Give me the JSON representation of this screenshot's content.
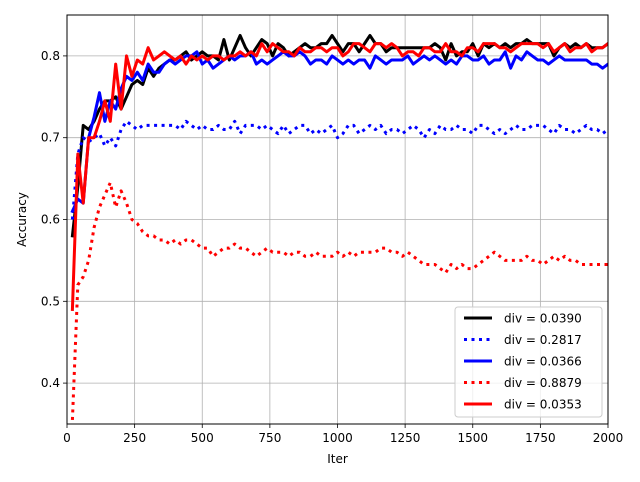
{
  "chart_data": {
    "type": "line",
    "title": "",
    "xlabel": "Iter",
    "ylabel": "Accuracy",
    "xlim": [
      0,
      2000
    ],
    "ylim": [
      0.35,
      0.85
    ],
    "xticks": [
      0,
      250,
      500,
      750,
      1000,
      1250,
      1500,
      1750,
      2000
    ],
    "yticks": [
      0.4,
      0.5,
      0.6,
      0.7,
      0.8
    ],
    "xtick_labels": [
      "0",
      "250",
      "500",
      "750",
      "1000",
      "1250",
      "1500",
      "1750",
      "2000"
    ],
    "ytick_labels": [
      "0.4",
      "0.5",
      "0.6",
      "0.7",
      "0.8"
    ],
    "grid": true,
    "legend_position": "lower-right",
    "x": [
      20,
      40,
      60,
      80,
      100,
      120,
      140,
      160,
      180,
      200,
      220,
      240,
      260,
      280,
      300,
      320,
      340,
      360,
      380,
      400,
      420,
      440,
      460,
      480,
      500,
      520,
      540,
      560,
      580,
      600,
      620,
      640,
      660,
      680,
      700,
      720,
      740,
      760,
      780,
      800,
      820,
      840,
      860,
      880,
      900,
      920,
      940,
      960,
      980,
      1000,
      1020,
      1040,
      1060,
      1080,
      1100,
      1120,
      1140,
      1160,
      1180,
      1200,
      1220,
      1240,
      1260,
      1280,
      1300,
      1320,
      1340,
      1360,
      1380,
      1400,
      1420,
      1440,
      1460,
      1480,
      1500,
      1520,
      1540,
      1560,
      1580,
      1600,
      1620,
      1640,
      1660,
      1680,
      1700,
      1720,
      1740,
      1760,
      1780,
      1800,
      1820,
      1840,
      1860,
      1880,
      1900,
      1920,
      1940,
      1960,
      1980,
      2000
    ],
    "series": [
      {
        "name": "div = 0.0390",
        "color": "#000000",
        "style": "solid",
        "values": [
          0.58,
          0.64,
          0.715,
          0.71,
          0.72,
          0.735,
          0.745,
          0.745,
          0.75,
          0.735,
          0.75,
          0.765,
          0.77,
          0.765,
          0.785,
          0.775,
          0.785,
          0.79,
          0.795,
          0.795,
          0.8,
          0.805,
          0.795,
          0.8,
          0.805,
          0.8,
          0.8,
          0.795,
          0.82,
          0.795,
          0.81,
          0.825,
          0.81,
          0.8,
          0.81,
          0.82,
          0.815,
          0.8,
          0.815,
          0.81,
          0.8,
          0.805,
          0.81,
          0.815,
          0.81,
          0.81,
          0.815,
          0.815,
          0.825,
          0.815,
          0.805,
          0.815,
          0.815,
          0.805,
          0.815,
          0.825,
          0.815,
          0.815,
          0.805,
          0.81,
          0.81,
          0.81,
          0.81,
          0.81,
          0.81,
          0.81,
          0.81,
          0.815,
          0.81,
          0.795,
          0.815,
          0.8,
          0.805,
          0.805,
          0.815,
          0.8,
          0.815,
          0.81,
          0.815,
          0.81,
          0.815,
          0.81,
          0.815,
          0.815,
          0.82,
          0.815,
          0.815,
          0.815,
          0.815,
          0.8,
          0.81,
          0.815,
          0.81,
          0.815,
          0.81,
          0.815,
          0.81,
          0.81,
          0.81,
          0.815
        ]
      },
      {
        "name": "div = 0.2817",
        "color": "#0000ff",
        "style": "dotted",
        "values": [
          0.6,
          0.68,
          0.7,
          0.695,
          0.7,
          0.705,
          0.69,
          0.7,
          0.69,
          0.71,
          0.72,
          0.715,
          0.71,
          0.715,
          0.715,
          0.715,
          0.715,
          0.715,
          0.715,
          0.715,
          0.71,
          0.72,
          0.715,
          0.71,
          0.715,
          0.71,
          0.71,
          0.715,
          0.71,
          0.71,
          0.72,
          0.705,
          0.715,
          0.715,
          0.715,
          0.71,
          0.715,
          0.71,
          0.705,
          0.715,
          0.705,
          0.71,
          0.715,
          0.715,
          0.705,
          0.71,
          0.705,
          0.71,
          0.715,
          0.7,
          0.705,
          0.715,
          0.715,
          0.705,
          0.71,
          0.715,
          0.71,
          0.715,
          0.705,
          0.71,
          0.71,
          0.705,
          0.71,
          0.715,
          0.71,
          0.7,
          0.71,
          0.705,
          0.715,
          0.71,
          0.71,
          0.715,
          0.71,
          0.71,
          0.705,
          0.715,
          0.715,
          0.71,
          0.705,
          0.71,
          0.705,
          0.71,
          0.715,
          0.71,
          0.71,
          0.715,
          0.715,
          0.715,
          0.71,
          0.705,
          0.715,
          0.71,
          0.71,
          0.705,
          0.71,
          0.715,
          0.71,
          0.71,
          0.705,
          0.71
        ]
      },
      {
        "name": "div = 0.0366",
        "color": "#0000ff",
        "style": "solid",
        "values": [
          0.61,
          0.625,
          0.62,
          0.7,
          0.725,
          0.755,
          0.72,
          0.745,
          0.735,
          0.76,
          0.775,
          0.77,
          0.78,
          0.77,
          0.79,
          0.78,
          0.78,
          0.79,
          0.795,
          0.79,
          0.795,
          0.8,
          0.8,
          0.805,
          0.79,
          0.795,
          0.785,
          0.79,
          0.795,
          0.8,
          0.795,
          0.8,
          0.8,
          0.805,
          0.79,
          0.795,
          0.79,
          0.795,
          0.8,
          0.805,
          0.8,
          0.8,
          0.805,
          0.8,
          0.79,
          0.795,
          0.795,
          0.79,
          0.8,
          0.795,
          0.79,
          0.795,
          0.79,
          0.795,
          0.795,
          0.785,
          0.8,
          0.795,
          0.79,
          0.795,
          0.795,
          0.795,
          0.8,
          0.79,
          0.795,
          0.8,
          0.795,
          0.8,
          0.795,
          0.79,
          0.795,
          0.79,
          0.8,
          0.8,
          0.795,
          0.795,
          0.8,
          0.79,
          0.795,
          0.795,
          0.805,
          0.785,
          0.8,
          0.795,
          0.805,
          0.8,
          0.795,
          0.795,
          0.79,
          0.795,
          0.8,
          0.795,
          0.795,
          0.795,
          0.795,
          0.795,
          0.79,
          0.79,
          0.785,
          0.79
        ]
      },
      {
        "name": "div = 0.8879",
        "color": "#ff0000",
        "style": "dotted",
        "values": [
          0.355,
          0.52,
          0.53,
          0.55,
          0.59,
          0.615,
          0.63,
          0.645,
          0.615,
          0.635,
          0.62,
          0.6,
          0.595,
          0.585,
          0.58,
          0.58,
          0.575,
          0.575,
          0.57,
          0.575,
          0.57,
          0.575,
          0.575,
          0.57,
          0.565,
          0.565,
          0.555,
          0.56,
          0.565,
          0.565,
          0.57,
          0.565,
          0.565,
          0.56,
          0.555,
          0.56,
          0.565,
          0.56,
          0.56,
          0.56,
          0.555,
          0.56,
          0.56,
          0.555,
          0.555,
          0.56,
          0.555,
          0.555,
          0.555,
          0.56,
          0.555,
          0.56,
          0.555,
          0.56,
          0.56,
          0.56,
          0.56,
          0.565,
          0.565,
          0.56,
          0.56,
          0.555,
          0.56,
          0.555,
          0.55,
          0.545,
          0.545,
          0.545,
          0.54,
          0.535,
          0.545,
          0.54,
          0.545,
          0.54,
          0.54,
          0.545,
          0.55,
          0.555,
          0.56,
          0.555,
          0.55,
          0.55,
          0.55,
          0.55,
          0.555,
          0.55,
          0.55,
          0.545,
          0.55,
          0.555,
          0.55,
          0.555,
          0.55,
          0.55,
          0.545,
          0.545,
          0.545,
          0.545,
          0.545,
          0.545
        ]
      },
      {
        "name": "div = 0.0353",
        "color": "#ff0000",
        "style": "solid",
        "values": [
          0.49,
          0.68,
          0.62,
          0.7,
          0.7,
          0.72,
          0.745,
          0.72,
          0.79,
          0.735,
          0.8,
          0.775,
          0.795,
          0.79,
          0.81,
          0.795,
          0.8,
          0.805,
          0.8,
          0.795,
          0.8,
          0.79,
          0.8,
          0.795,
          0.8,
          0.795,
          0.8,
          0.8,
          0.795,
          0.8,
          0.8,
          0.805,
          0.8,
          0.805,
          0.8,
          0.815,
          0.805,
          0.815,
          0.81,
          0.805,
          0.805,
          0.8,
          0.81,
          0.805,
          0.805,
          0.81,
          0.81,
          0.805,
          0.81,
          0.81,
          0.8,
          0.805,
          0.815,
          0.815,
          0.81,
          0.805,
          0.815,
          0.815,
          0.81,
          0.815,
          0.81,
          0.8,
          0.805,
          0.805,
          0.8,
          0.81,
          0.81,
          0.805,
          0.805,
          0.815,
          0.805,
          0.805,
          0.8,
          0.81,
          0.81,
          0.805,
          0.815,
          0.815,
          0.815,
          0.81,
          0.81,
          0.805,
          0.81,
          0.815,
          0.815,
          0.815,
          0.815,
          0.81,
          0.815,
          0.805,
          0.81,
          0.815,
          0.805,
          0.81,
          0.81,
          0.815,
          0.805,
          0.81,
          0.81,
          0.815
        ]
      }
    ]
  }
}
